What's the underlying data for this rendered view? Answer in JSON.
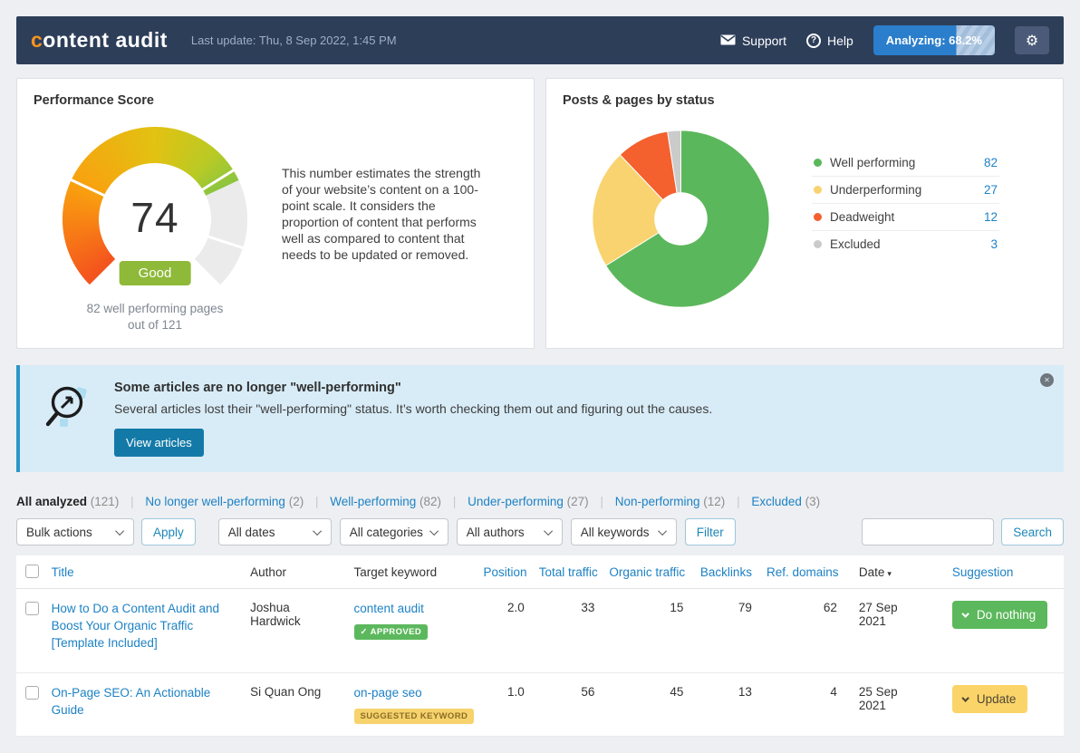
{
  "navbar": {
    "logo_prefix": "c",
    "logo_rest": "ontent audit",
    "last_update": "Last update: Thu, 8 Sep 2022, 1:45 PM",
    "support": "Support",
    "help": "Help",
    "help_glyph": "?",
    "analyzing_label": "Analyzing: 68.2%",
    "analyzing_percent": 68.2
  },
  "theme": {
    "accent_blue": "#1d82c5",
    "navbar_bg": "#2d3e59",
    "logo_accent": "#f7941e",
    "banner_bg": "#d8ecf7",
    "good_green": "#5cb85c",
    "warn_yellow": "#fbd469"
  },
  "performance_card": {
    "title": "Performance Score",
    "score": 74,
    "score_label": "Good",
    "caption_line1": "82 well performing pages",
    "caption_line2": "out of 121",
    "description": "This number estimates the strength of your website’s content on a 100-point scale. It considers the proportion of content that performs well as compared to content that needs to be updated or removed."
  },
  "status_card": {
    "title": "Posts & pages by status"
  },
  "chart_data": [
    {
      "type": "gauge",
      "title": "Performance Score",
      "value": 74,
      "max": 100,
      "arc_degrees": 270,
      "label": "Good",
      "color_stops": [
        [
          0,
          "#f4511e"
        ],
        [
          0.25,
          "#f9a00f"
        ],
        [
          0.5,
          "#e2c212"
        ],
        [
          0.66,
          "#b8ca26"
        ],
        [
          0.74,
          "#8bc53f"
        ]
      ],
      "track_color": "#ebebeb",
      "separators": [
        0.26,
        0.715,
        0.9
      ]
    },
    {
      "type": "pie",
      "title": "Posts & pages by status",
      "donut_hole": 0.3,
      "start_angle": "top, clockwise",
      "categories": [
        "Well performing",
        "Underperforming",
        "Deadweight",
        "Excluded"
      ],
      "values": [
        82,
        27,
        12,
        3
      ],
      "colors": [
        "#5bb75b",
        "#f9d36f",
        "#f4602e",
        "#cbcbcb"
      ],
      "legend_position": "right"
    }
  ],
  "banner": {
    "title": "Some articles are no longer \"well-performing\"",
    "text": "Several articles lost their \"well-performing\" status. It’s worth checking them out and figuring out the causes.",
    "button": "View articles",
    "close_glyph": "✕"
  },
  "tabs": {
    "active": {
      "label": "All analyzed",
      "count": "(121)"
    },
    "items": [
      {
        "label": "No longer well-performing",
        "count": "(2)"
      },
      {
        "label": "Well-performing",
        "count": "(82)"
      },
      {
        "label": "Under-performing",
        "count": "(27)"
      },
      {
        "label": "Non-performing",
        "count": "(12)"
      },
      {
        "label": "Excluded",
        "count": "(3)"
      }
    ]
  },
  "filters": {
    "bulk_actions": "Bulk actions",
    "apply": "Apply",
    "dates": "All dates",
    "categories": "All categories",
    "authors": "All authors",
    "keywords": "All keywords",
    "filter": "Filter",
    "search_value": "",
    "search_button": "Search"
  },
  "table": {
    "headers": {
      "title": "Title",
      "author": "Author",
      "keyword": "Target keyword",
      "position": "Position",
      "total_traffic": "Total traffic",
      "organic_traffic": "Organic traffic",
      "backlinks": "Backlinks",
      "ref_domains": "Ref. domains",
      "date": "Date",
      "sort_glyph": "▾",
      "suggestion": "Suggestion"
    },
    "rows": [
      {
        "title": "How to Do a Content Audit and Boost Your Organic Traffic [Template Included]",
        "author": "Joshua Hardwick",
        "keyword": "content audit",
        "keyword_badge": "✓ APPROVED",
        "position": "2.0",
        "total_traffic": "33",
        "organic_traffic": "15",
        "backlinks": "79",
        "ref_domains": "62",
        "date": "27 Sep 2021",
        "suggestion": "Do nothing"
      },
      {
        "title": "On-Page SEO: An Actionable Guide",
        "author": "Si Quan Ong",
        "keyword": "on-page seo",
        "keyword_badge": "SUGGESTED KEYWORD",
        "position": "1.0",
        "total_traffic": "56",
        "organic_traffic": "45",
        "backlinks": "13",
        "ref_domains": "4",
        "date": "25 Sep 2021",
        "suggestion": "Update"
      }
    ]
  }
}
